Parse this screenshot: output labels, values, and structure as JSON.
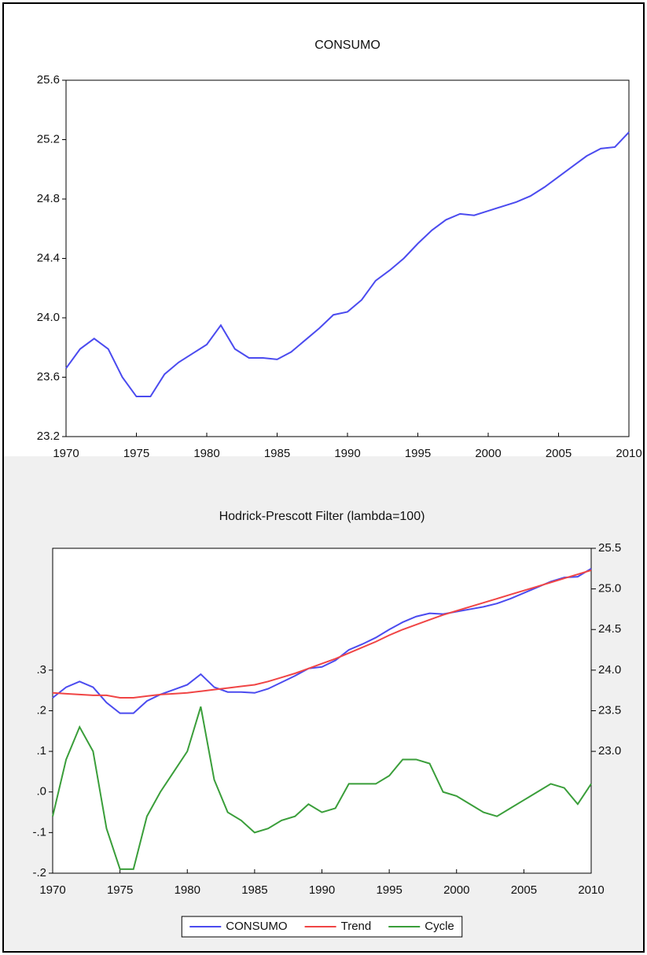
{
  "chart_data": [
    {
      "type": "line",
      "title": "CONSUMO",
      "x": [
        1970,
        1971,
        1972,
        1973,
        1974,
        1975,
        1976,
        1977,
        1978,
        1979,
        1980,
        1981,
        1982,
        1983,
        1984,
        1985,
        1986,
        1987,
        1988,
        1989,
        1990,
        1991,
        1992,
        1993,
        1994,
        1995,
        1996,
        1997,
        1998,
        1999,
        2000,
        2001,
        2002,
        2003,
        2004,
        2005,
        2006,
        2007,
        2008,
        2009,
        2010
      ],
      "values": [
        23.66,
        23.79,
        23.86,
        23.79,
        23.6,
        23.47,
        23.47,
        23.62,
        23.7,
        23.76,
        23.82,
        23.95,
        23.79,
        23.73,
        23.73,
        23.72,
        23.77,
        23.85,
        23.93,
        24.02,
        24.04,
        24.12,
        24.25,
        24.32,
        24.4,
        24.5,
        24.59,
        24.66,
        24.7,
        24.69,
        24.72,
        24.75,
        24.78,
        24.82,
        24.88,
        24.95,
        25.02,
        25.09,
        25.14,
        25.15,
        25.25
      ],
      "color": "#4b4bef",
      "xlim": [
        1970,
        2010
      ],
      "xticks": [
        1970,
        1975,
        1980,
        1985,
        1990,
        1995,
        2000,
        2005,
        2010
      ],
      "ylim": [
        23.2,
        25.6
      ],
      "yticks": [
        23.2,
        23.6,
        {
          "value": 24.0,
          "label": "24.0"
        },
        24.4,
        24.8,
        25.2,
        25.6
      ],
      "grid": false
    },
    {
      "type": "line",
      "title": "Hodrick-Prescott Filter (lambda=100)",
      "x": [
        1970,
        1971,
        1972,
        1973,
        1974,
        1975,
        1976,
        1977,
        1978,
        1979,
        1980,
        1981,
        1982,
        1983,
        1984,
        1985,
        1986,
        1987,
        1988,
        1989,
        1990,
        1991,
        1992,
        1993,
        1994,
        1995,
        1996,
        1997,
        1998,
        1999,
        2000,
        2001,
        2002,
        2003,
        2004,
        2005,
        2006,
        2007,
        2008,
        2009,
        2010
      ],
      "series": [
        {
          "name": "CONSUMO",
          "color": "#4b4bef",
          "axis": "y2",
          "values": [
            23.66,
            23.79,
            23.86,
            23.79,
            23.6,
            23.47,
            23.47,
            23.62,
            23.7,
            23.76,
            23.82,
            23.95,
            23.79,
            23.73,
            23.73,
            23.72,
            23.77,
            23.85,
            23.93,
            24.02,
            24.04,
            24.12,
            24.25,
            24.32,
            24.4,
            24.5,
            24.59,
            24.66,
            24.7,
            24.69,
            24.72,
            24.75,
            24.78,
            24.82,
            24.88,
            24.95,
            25.02,
            25.09,
            25.14,
            25.15,
            25.25
          ]
        },
        {
          "name": "Trend",
          "color": "#f04545",
          "axis": "y2",
          "values": [
            23.72,
            23.71,
            23.7,
            23.69,
            23.69,
            23.66,
            23.66,
            23.68,
            23.7,
            23.71,
            23.72,
            23.74,
            23.76,
            23.78,
            23.8,
            23.82,
            23.86,
            23.91,
            23.96,
            24.02,
            24.08,
            24.14,
            24.21,
            24.28,
            24.35,
            24.43,
            24.5,
            24.56,
            24.62,
            24.68,
            24.73,
            24.78,
            24.83,
            24.88,
            24.93,
            24.98,
            25.03,
            25.08,
            25.13,
            25.18,
            25.23
          ]
        },
        {
          "name": "Cycle",
          "color": "#3a9e3a",
          "values": [
            -0.06,
            0.08,
            0.16,
            0.1,
            -0.09,
            -0.19,
            -0.19,
            -0.06,
            0.0,
            0.05,
            0.1,
            0.21,
            0.03,
            -0.05,
            -0.07,
            -0.1,
            -0.09,
            -0.07,
            -0.06,
            -0.03,
            -0.05,
            -0.04,
            0.02,
            0.02,
            0.02,
            0.04,
            0.08,
            0.08,
            0.07,
            0.0,
            -0.01,
            -0.03,
            -0.05,
            -0.06,
            -0.04,
            -0.02,
            0.0,
            0.02,
            0.01,
            -0.03,
            0.02
          ]
        }
      ],
      "xlim": [
        1970,
        2010
      ],
      "xticks": [
        1970,
        1975,
        1980,
        1985,
        1990,
        1995,
        2000,
        2005,
        2010
      ],
      "ylim": [
        -0.2,
        0.6
      ],
      "yticks": [
        {
          "value": -0.2,
          "label": "-.2"
        },
        {
          "value": -0.1,
          "label": "-.1"
        },
        {
          "value": 0.0,
          "label": ".0"
        },
        {
          "value": 0.1,
          "label": ".1"
        },
        {
          "value": 0.2,
          "label": ".2"
        },
        {
          "value": 0.3,
          "label": ".3"
        }
      ],
      "y2lim": [
        21.5,
        25.5
      ],
      "y2ticks": [
        {
          "value": 23.0,
          "label": "23.0"
        },
        23.5,
        {
          "value": 24.0,
          "label": "24.0"
        },
        24.5,
        {
          "value": 25.0,
          "label": "25.0"
        },
        25.5
      ],
      "legend": "bottom",
      "grid": false
    }
  ]
}
